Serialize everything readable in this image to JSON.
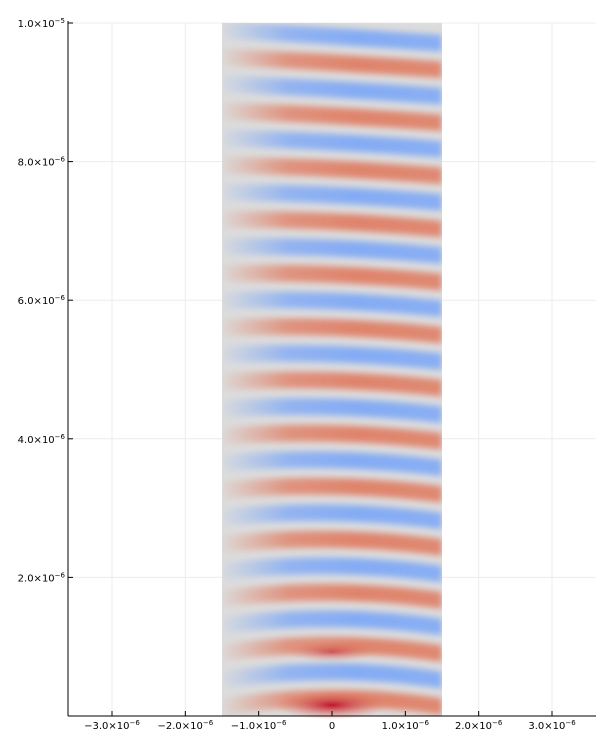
{
  "chart_data": {
    "type": "heatmap",
    "title": "",
    "xlabel": "",
    "ylabel": "",
    "xlim": [
      -3.6e-06,
      3.6e-06
    ],
    "ylim": [
      0,
      1e-05
    ],
    "grid": true,
    "legend": "none",
    "field_extent": {
      "x": [
        -1.5e-06,
        1.5e-06
      ],
      "y": [
        0,
        1e-05
      ]
    },
    "field": {
      "description_of_values": "oscillating wave field, positive=red, negative=blue, zero=gray",
      "fringe_count": 26,
      "peak_value_location": [
        0,
        1e-07
      ],
      "min_value": -1,
      "max_value": 1
    },
    "colormap": {
      "negative": "#7aa6f7",
      "zero": "#dcdcdc",
      "positive": "#e07a5f",
      "strong_positive": "#c0152f"
    },
    "x_ticks": [
      {
        "value": -3e-06,
        "mantissa": "−3.0×10",
        "exp": "−6"
      },
      {
        "value": -2e-06,
        "mantissa": "−2.0×10",
        "exp": "−6"
      },
      {
        "value": -1e-06,
        "mantissa": "−1.0×10",
        "exp": "−6"
      },
      {
        "value": 0,
        "mantissa": "0",
        "exp": ""
      },
      {
        "value": 1e-06,
        "mantissa": "1.0×10",
        "exp": "−6"
      },
      {
        "value": 2e-06,
        "mantissa": "2.0×10",
        "exp": "−6"
      },
      {
        "value": 3e-06,
        "mantissa": "3.0×10",
        "exp": "−6"
      }
    ],
    "y_ticks": [
      {
        "value": 2e-06,
        "mantissa": "2.0×10",
        "exp": "−6"
      },
      {
        "value": 4e-06,
        "mantissa": "4.0×10",
        "exp": "−6"
      },
      {
        "value": 6e-06,
        "mantissa": "6.0×10",
        "exp": "−6"
      },
      {
        "value": 8e-06,
        "mantissa": "8.0×10",
        "exp": "−6"
      },
      {
        "value": 1e-05,
        "mantissa": "1.0×10",
        "exp": "−5"
      }
    ]
  }
}
